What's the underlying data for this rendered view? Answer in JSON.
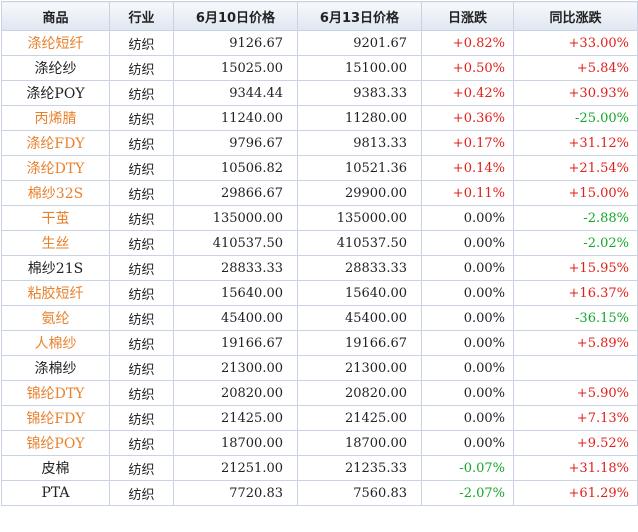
{
  "colors": {
    "link": "#e8812d",
    "up": "#e0201b",
    "down": "#13a82a",
    "header_bg": "#dfe6f1"
  },
  "columns": [
    "商品",
    "行业",
    "6月10日价格",
    "6月13日价格",
    "日涨跌",
    "同比涨跌"
  ],
  "rows": [
    {
      "name": "涤纶短纤",
      "link": true,
      "industry": "纺织",
      "p1": "9126.67",
      "p2": "9201.67",
      "day": "+0.82%",
      "day_dir": "up",
      "yoy": "+33.00%",
      "yoy_dir": "up"
    },
    {
      "name": "涤纶纱",
      "link": false,
      "industry": "纺织",
      "p1": "15025.00",
      "p2": "15100.00",
      "day": "+0.50%",
      "day_dir": "up",
      "yoy": "+5.84%",
      "yoy_dir": "up"
    },
    {
      "name": "涤纶POY",
      "link": false,
      "industry": "纺织",
      "p1": "9344.44",
      "p2": "9383.33",
      "day": "+0.42%",
      "day_dir": "up",
      "yoy": "+30.93%",
      "yoy_dir": "up"
    },
    {
      "name": "丙烯腈",
      "link": true,
      "industry": "纺织",
      "p1": "11240.00",
      "p2": "11280.00",
      "day": "+0.36%",
      "day_dir": "up",
      "yoy": "-25.00%",
      "yoy_dir": "down"
    },
    {
      "name": "涤纶FDY",
      "link": true,
      "industry": "纺织",
      "p1": "9796.67",
      "p2": "9813.33",
      "day": "+0.17%",
      "day_dir": "up",
      "yoy": "+31.12%",
      "yoy_dir": "up"
    },
    {
      "name": "涤纶DTY",
      "link": true,
      "industry": "纺织",
      "p1": "10506.82",
      "p2": "10521.36",
      "day": "+0.14%",
      "day_dir": "up",
      "yoy": "+21.54%",
      "yoy_dir": "up"
    },
    {
      "name": "棉纱32S",
      "link": true,
      "industry": "纺织",
      "p1": "29866.67",
      "p2": "29900.00",
      "day": "+0.11%",
      "day_dir": "up",
      "yoy": "+15.00%",
      "yoy_dir": "up"
    },
    {
      "name": "干茧",
      "link": true,
      "industry": "纺织",
      "p1": "135000.00",
      "p2": "135000.00",
      "day": "0.00%",
      "day_dir": "flat",
      "yoy": "-2.88%",
      "yoy_dir": "down"
    },
    {
      "name": "生丝",
      "link": true,
      "industry": "纺织",
      "p1": "410537.50",
      "p2": "410537.50",
      "day": "0.00%",
      "day_dir": "flat",
      "yoy": "-2.02%",
      "yoy_dir": "down"
    },
    {
      "name": "棉纱21S",
      "link": false,
      "industry": "纺织",
      "p1": "28833.33",
      "p2": "28833.33",
      "day": "0.00%",
      "day_dir": "flat",
      "yoy": "+15.95%",
      "yoy_dir": "up"
    },
    {
      "name": "粘胶短纤",
      "link": true,
      "industry": "纺织",
      "p1": "15640.00",
      "p2": "15640.00",
      "day": "0.00%",
      "day_dir": "flat",
      "yoy": "+16.37%",
      "yoy_dir": "up"
    },
    {
      "name": "氨纶",
      "link": true,
      "industry": "纺织",
      "p1": "45400.00",
      "p2": "45400.00",
      "day": "0.00%",
      "day_dir": "flat",
      "yoy": "-36.15%",
      "yoy_dir": "down"
    },
    {
      "name": "人棉纱",
      "link": true,
      "industry": "纺织",
      "p1": "19166.67",
      "p2": "19166.67",
      "day": "0.00%",
      "day_dir": "flat",
      "yoy": "+5.89%",
      "yoy_dir": "up"
    },
    {
      "name": "涤棉纱",
      "link": false,
      "industry": "纺织",
      "p1": "21300.00",
      "p2": "21300.00",
      "day": "0.00%",
      "day_dir": "flat",
      "yoy": "",
      "yoy_dir": "flat"
    },
    {
      "name": "锦纶DTY",
      "link": true,
      "industry": "纺织",
      "p1": "20820.00",
      "p2": "20820.00",
      "day": "0.00%",
      "day_dir": "flat",
      "yoy": "+5.90%",
      "yoy_dir": "up"
    },
    {
      "name": "锦纶FDY",
      "link": true,
      "industry": "纺织",
      "p1": "21425.00",
      "p2": "21425.00",
      "day": "0.00%",
      "day_dir": "flat",
      "yoy": "+7.13%",
      "yoy_dir": "up"
    },
    {
      "name": "锦纶POY",
      "link": true,
      "industry": "纺织",
      "p1": "18700.00",
      "p2": "18700.00",
      "day": "0.00%",
      "day_dir": "flat",
      "yoy": "+9.52%",
      "yoy_dir": "up"
    },
    {
      "name": "皮棉",
      "link": false,
      "industry": "纺织",
      "p1": "21251.00",
      "p2": "21235.33",
      "day": "-0.07%",
      "day_dir": "down",
      "yoy": "+31.18%",
      "yoy_dir": "up"
    },
    {
      "name": "PTA",
      "link": false,
      "industry": "纺织",
      "p1": "7720.83",
      "p2": "7560.83",
      "day": "-2.07%",
      "day_dir": "down",
      "yoy": "+61.29%",
      "yoy_dir": "up"
    }
  ]
}
